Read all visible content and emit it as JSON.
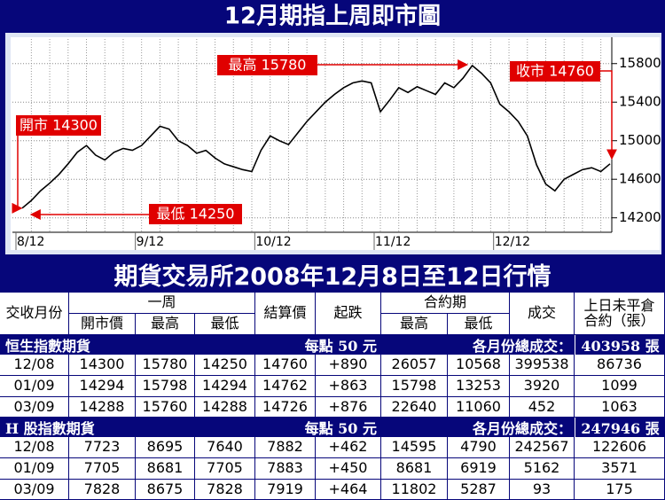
{
  "chart_data": {
    "type": "line",
    "title": "12月期指上周即市圖",
    "categories": [
      "8/12",
      null,
      null,
      null,
      null,
      null,
      null,
      null,
      null,
      null,
      null,
      null,
      null,
      "9/12",
      null,
      null,
      null,
      null,
      null,
      null,
      null,
      null,
      null,
      null,
      null,
      null,
      "10/12",
      null,
      null,
      null,
      null,
      null,
      null,
      null,
      null,
      null,
      null,
      null,
      null,
      "11/12",
      null,
      null,
      null,
      null,
      null,
      null,
      null,
      null,
      null,
      null,
      null,
      null,
      "12/12",
      null,
      null,
      null,
      null,
      null,
      null,
      null,
      null,
      null,
      null,
      null,
      null
    ],
    "series": [
      {
        "name": null,
        "color": "#000000",
        "values": [
          14300,
          14380,
          14480,
          14560,
          14650,
          14760,
          14880,
          14950,
          14850,
          14800,
          14880,
          14920,
          14900,
          14950,
          15050,
          15150,
          15120,
          15000,
          14950,
          14870,
          14900,
          14820,
          14760,
          14730,
          14700,
          14680,
          14900,
          15050,
          15000,
          14960,
          15080,
          15200,
          15300,
          15400,
          15480,
          15550,
          15600,
          15620,
          15600,
          15300,
          15420,
          15550,
          15500,
          15560,
          15520,
          15480,
          15600,
          15550,
          15650,
          15780,
          15700,
          15600,
          15380,
          15300,
          15200,
          15050,
          14750,
          14550,
          14480,
          14600,
          14650,
          14700,
          14720,
          14680,
          14760
        ]
      }
    ],
    "ylim": [
      14050,
      16000
    ],
    "yticks": [
      14200,
      14600,
      15000,
      15400,
      15800
    ],
    "grid": true,
    "annotations": [
      "開市 14300",
      "最高 15780",
      "收市 14760",
      "最低 14250"
    ]
  },
  "table": {
    "title": "期貨交易所2008年12月8日至12日行情",
    "header": {
      "top": [
        "交收月份",
        "一周",
        "結算價",
        "起跌",
        "合約期",
        "成交"
      ],
      "sub": [
        "開市價",
        "最高",
        "最低",
        "最高",
        "最低"
      ],
      "open_interest": [
        "上日未平倉",
        "合約（張）"
      ]
    },
    "sections": [
      {
        "name": "恒生指數期貨",
        "note": "每點 50 元",
        "total_label": "各月份總成交：",
        "total": "403958 張",
        "rows": [
          [
            "12/08",
            "14300",
            "15780",
            "14250",
            "14760",
            "+890",
            "26057",
            "10568",
            "399538",
            "86736"
          ],
          [
            "01/09",
            "14294",
            "15798",
            "14294",
            "14762",
            "+863",
            "15798",
            "13253",
            "3920",
            "1099"
          ],
          [
            "03/09",
            "14288",
            "15760",
            "14288",
            "14726",
            "+876",
            "22640",
            "11060",
            "452",
            "1063"
          ]
        ]
      },
      {
        "name": "H 股指數期貨",
        "note": "每點 50 元",
        "total_label": "各月份總成交：",
        "total": "247946 張",
        "rows": [
          [
            "12/08",
            "7723",
            "8695",
            "7640",
            "7882",
            "+462",
            "14595",
            "4790",
            "242567",
            "122606"
          ],
          [
            "01/09",
            "7705",
            "8681",
            "7705",
            "7883",
            "+450",
            "8681",
            "6919",
            "5162",
            "3571"
          ],
          [
            "03/09",
            "7828",
            "8675",
            "7828",
            "7919",
            "+464",
            "11802",
            "5287",
            "93",
            "175"
          ]
        ]
      }
    ]
  }
}
